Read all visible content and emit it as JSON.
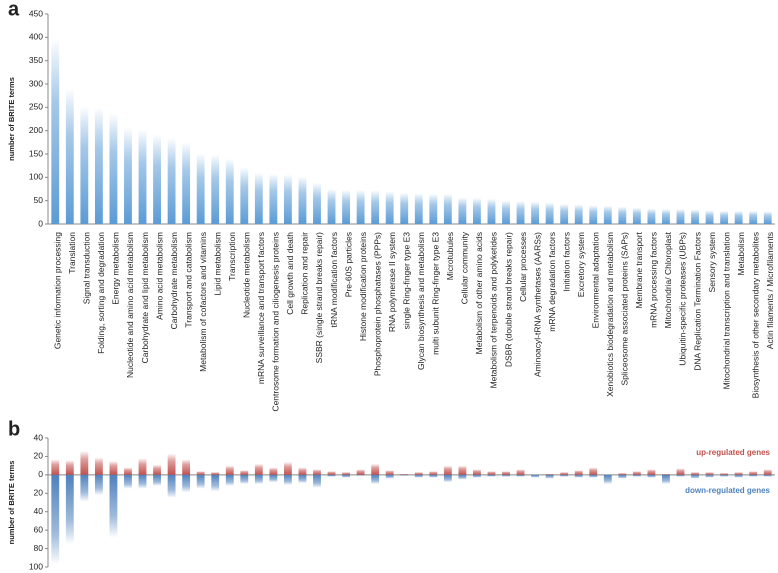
{
  "chart_data": [
    {
      "type": "bar",
      "panel_label": "a",
      "y_label": "number of BRITE terms",
      "color": "#5b9bd5",
      "categories": [
        "Genetic information processing",
        "Translation",
        "Signal transduction",
        "Folding, sorting and degradation",
        "Energy metabolism",
        "Nucleotide and amino acid metabolism",
        "Carbohydrate and lipid metabolism",
        "Amino acid metabolism",
        "Carbohydrate metabolism",
        "Transport and catabolism",
        "Metabolism of cofactors and vitamins",
        "Lipid metabolism",
        "Transcription",
        "Nucleotide metabolism",
        "mRNA surveillance and transport factors",
        "Centrosome formation and ciliogenesis proteins",
        "Cell growth and death",
        "Replication and repair",
        "SSBR (single strand breaks repair)",
        "tRNA modification factors",
        "Pre-60S particles",
        "Histone modification proteins",
        "Phosphoprotein phosphatases (PPPs)",
        "RNA polymerase II system",
        "single Ring-finger type E3",
        "Glycan biosynthesis and metabolism",
        "multi subunit Ring-finger type E3",
        "Microtubules",
        "Cellular community",
        "Metabolism of other amino acids",
        "Metabolism of terpenoids and polyketides",
        "DSBR (double strand breaks repair)",
        "Cellular processes",
        "Aminoacyl-tRNA synthetases (AARSs)",
        "mRNA degradation factors",
        "Initiation factors",
        "Excretory system",
        "Environmental adaptation",
        "Xenobiotics biodegradation and metabolism",
        "Spliceosome associated proteins (SAPs)",
        "Membrane transport",
        "mRNA processing factors",
        "Mitochondria/ Chloroplast",
        "Ubiquitin-specific proteases (UBPs)",
        "DNA Replication Termination Factors",
        "Sensory system",
        "Mitochondrial transcription and translation",
        "Metabolism",
        "Biosynthesis of other secondary metabolites",
        "Actin filaments / Microfilaments"
      ],
      "values": [
        398,
        290,
        253,
        250,
        238,
        207,
        203,
        192,
        185,
        175,
        151,
        150,
        140,
        122,
        110,
        108,
        106,
        102,
        88,
        75,
        73,
        73,
        72,
        70,
        67,
        66,
        65,
        65,
        57,
        56,
        54,
        50,
        49,
        48,
        46,
        43,
        42,
        40,
        39,
        37,
        35,
        33,
        32,
        32,
        31,
        29,
        28,
        28,
        28,
        27
      ],
      "ylim": [
        0,
        450
      ],
      "yticks": [
        0,
        50,
        100,
        150,
        200,
        250,
        300,
        350,
        400,
        450
      ]
    },
    {
      "type": "bar",
      "panel_label": "b",
      "y_label": "number of BRITE terms",
      "legend": "right",
      "series": [
        {
          "name": "up-regulated genes",
          "color": "#c0504d",
          "values": [
            17,
            16,
            26,
            19,
            15,
            8,
            18,
            11,
            23,
            17,
            4,
            3,
            10,
            5,
            12,
            8,
            14,
            8,
            6,
            4,
            3,
            6,
            12,
            5,
            1,
            3,
            4,
            10,
            10,
            6,
            4,
            4,
            6,
            0,
            1,
            3,
            5,
            8,
            0,
            2,
            4,
            6,
            1,
            7,
            3,
            3,
            2,
            3,
            4,
            6
          ]
        },
        {
          "name": "down-regulated genes",
          "color": "#4f81bd",
          "values": [
            -97,
            -75,
            -29,
            -22,
            -68,
            -15,
            -15,
            -12,
            -25,
            -19,
            -15,
            -18,
            -12,
            -10,
            -10,
            -8,
            -11,
            -9,
            -14,
            -2,
            -3,
            -1,
            -10,
            -4,
            -1,
            -3,
            -3,
            -8,
            -5,
            -3,
            -2,
            -2,
            -2,
            -3,
            -4,
            -2,
            -3,
            -3,
            -10,
            -4,
            -2,
            -3,
            -10,
            -2,
            -4,
            -3,
            -2,
            -3,
            -2,
            -2
          ]
        }
      ],
      "ylim": [
        -100,
        40
      ],
      "yticks": [
        40,
        20,
        0,
        {
          "value": -20,
          "label": "20"
        },
        {
          "value": -40,
          "label": "40"
        },
        {
          "value": -60,
          "label": "60"
        },
        {
          "value": -80,
          "label": "80"
        },
        {
          "value": -100,
          "label": "100"
        }
      ]
    }
  ]
}
